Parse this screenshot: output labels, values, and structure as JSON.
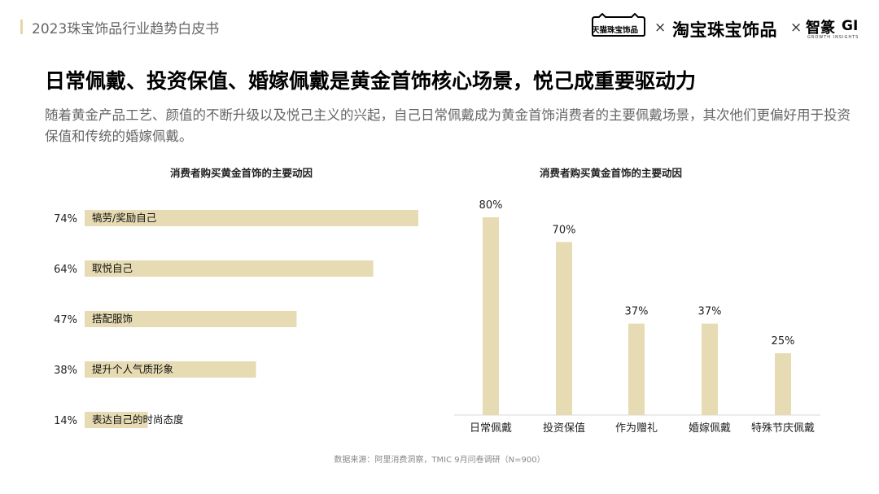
{
  "header": {
    "report_title": "2023珠宝饰品行业趋势白皮书",
    "logos": {
      "tmall": "天猫珠宝饰品",
      "separator": "×",
      "taobao": "淘宝珠宝饰品",
      "zhisuan": "智篆",
      "gi": "GI",
      "gi_sub": "GROWTH INSIGHTS"
    }
  },
  "headline": "日常佩戴、投资保值、婚嫁佩戴是黄金首饰核心场景，悦己成重要驱动力",
  "subtext": "随着黄金产品工艺、颜值的不断升级以及悦己主义的兴起，自己日常佩戴成为黄金首饰消费者的主要佩戴场景，其次他们更偏好用于投资保值和传统的婚嫁佩戴。",
  "source": "数据来源：阿里消费洞察，TMIC 9月问卷调研（N=900）",
  "colors": {
    "bar": "#e7dbb3",
    "accent": "#e4d6a7"
  },
  "chart_data": [
    {
      "type": "bar",
      "orientation": "horizontal",
      "title": "消费者购买黄金首饰的主要动因",
      "categories": [
        "犒劳/奖励自己",
        "取悦自己",
        "搭配服饰",
        "提升个人气质形象",
        "表达自己的时尚态度"
      ],
      "values": [
        74,
        64,
        47,
        38,
        14
      ],
      "value_labels": [
        "74%",
        "64%",
        "47%",
        "38%",
        "14%"
      ],
      "unit": "%"
    },
    {
      "type": "bar",
      "orientation": "vertical",
      "title": "消费者购买黄金首饰的主要动因",
      "categories": [
        "日常佩戴",
        "投资保值",
        "作为赠礼",
        "婚嫁佩戴",
        "特殊节庆佩戴"
      ],
      "values": [
        80,
        70,
        37,
        37,
        25
      ],
      "value_labels": [
        "80%",
        "70%",
        "37%",
        "37%",
        "25%"
      ],
      "unit": "%"
    }
  ]
}
